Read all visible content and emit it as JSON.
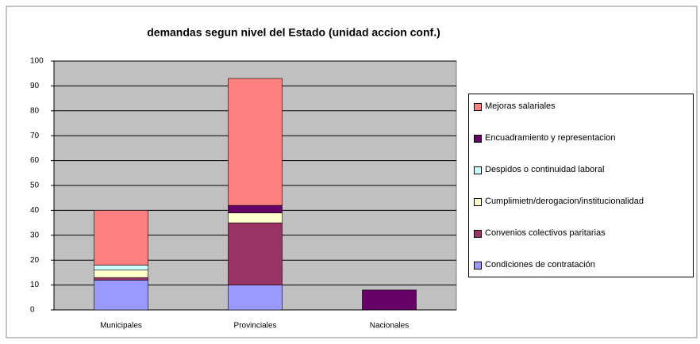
{
  "chart_data": {
    "type": "stacked_bar",
    "title": "demandas segun nivel del Estado (unidad accion conf.)",
    "categories": [
      "Municipales",
      "Provinciales",
      "Nacionales"
    ],
    "series": [
      {
        "name": "Condiciones de contratación",
        "color": "#9999ff",
        "values": [
          12,
          10,
          0
        ]
      },
      {
        "name": "Convenios colectivos paritarias",
        "color": "#993366",
        "values": [
          1,
          25,
          0
        ]
      },
      {
        "name": "Cumplimietn/derogacion/institucionalidad",
        "color": "#ffffcc",
        "values": [
          3,
          4,
          0
        ]
      },
      {
        "name": "Despidos o continuidad laboral",
        "color": "#ccffff",
        "values": [
          2,
          0,
          0
        ]
      },
      {
        "name": "Encuadramiento y representacion",
        "color": "#660066",
        "values": [
          0,
          3,
          8
        ]
      },
      {
        "name": "Mejoras salariales",
        "color": "#ff8080",
        "values": [
          22,
          51,
          0
        ]
      }
    ],
    "ylim": [
      0,
      100
    ],
    "yticks": [
      0,
      10,
      20,
      30,
      40,
      50,
      60,
      70,
      80,
      90,
      100
    ],
    "grid": true
  }
}
